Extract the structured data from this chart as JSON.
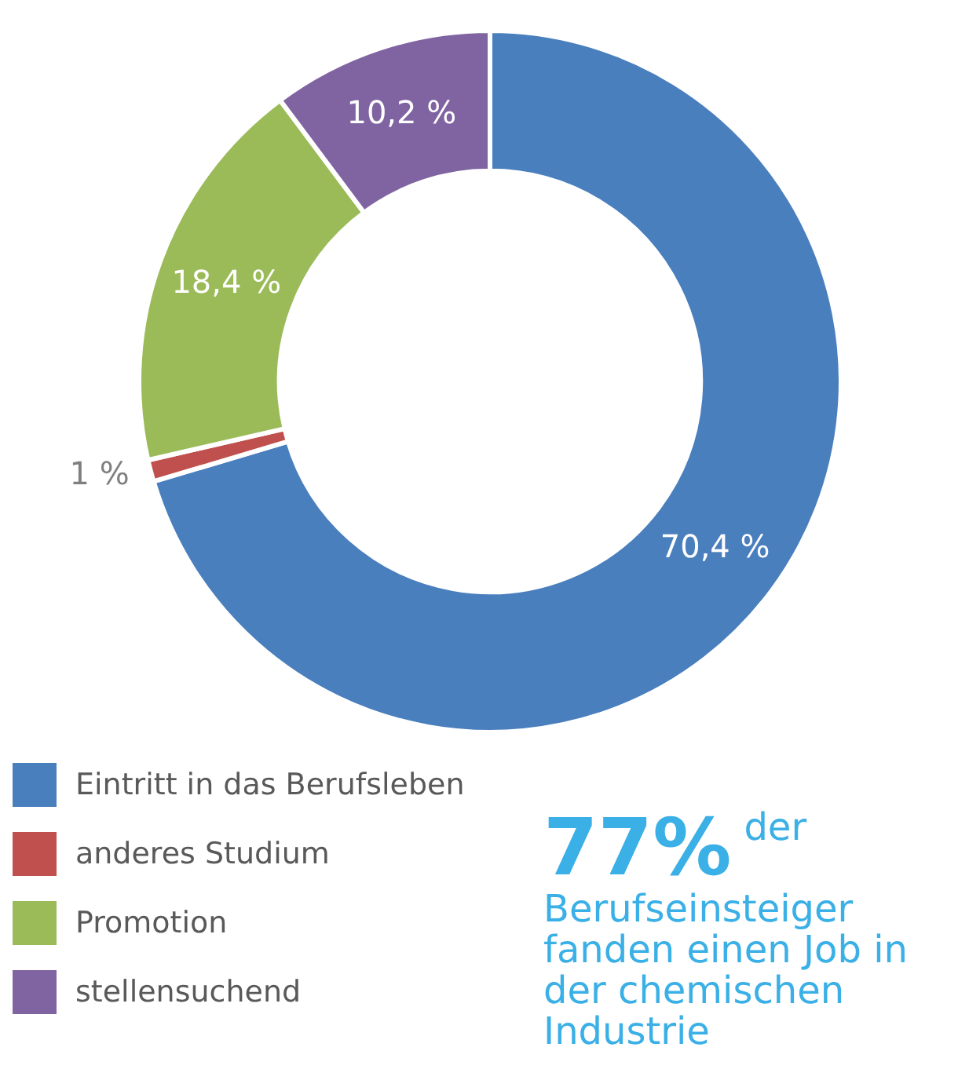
{
  "chart_data": {
    "type": "donut",
    "categories": [
      "Eintritt in das Berufsleben",
      "anderes Studium",
      "Promotion",
      "stellensuchend"
    ],
    "values": [
      70.4,
      1,
      18.4,
      10.2
    ],
    "colors": [
      "#4a7fbe",
      "#c0504d",
      "#9bbb59",
      "#8064a2"
    ],
    "value_labels": [
      "70,4 %",
      "1 %",
      "18,4 %",
      "10,2 %"
    ],
    "legend": "bottom left",
    "annotations": [
      "77%",
      "der Berufseinsteiger fanden einen Job in der chemischen Industrie"
    ]
  }
}
